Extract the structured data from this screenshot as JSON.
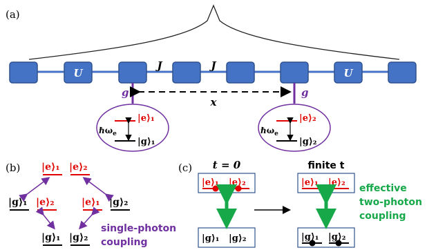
{
  "panel_a": {
    "label": "(a)",
    "u_label": "U",
    "j_label": "J",
    "g_label": "g",
    "x_label": "x",
    "atom1": {
      "e": "|e⟩₁",
      "g": "|g⟩₁",
      "omega": "ℏω"
    },
    "atom2": {
      "e": "|e⟩₂",
      "g": "|g⟩₂",
      "omega": "ℏω"
    },
    "omega_sub": "e"
  },
  "panel_b": {
    "label": "(b)",
    "top": [
      "|e⟩₁",
      "|e⟩₂"
    ],
    "mid_left": [
      "|g⟩₁",
      "|e⟩₂"
    ],
    "mid_right": [
      "|e⟩₁",
      "|g⟩₂"
    ],
    "bottom": [
      "|g⟩₁",
      "|g⟩₂"
    ],
    "caption_line1": "single-photon",
    "caption_line2": "coupling"
  },
  "panel_c": {
    "label": "(c)",
    "t0": "t = 0",
    "tfinite": "finite t",
    "top_left": [
      "|e⟩₁",
      "|e⟩₂"
    ],
    "top_right": [
      "|e⟩₁",
      "|e⟩₂"
    ],
    "bottom_left": [
      "|g⟩₁",
      "|g⟩₂"
    ],
    "bottom_right": [
      "|g⟩₁",
      "|g⟩₂"
    ],
    "caption_line1": "effective",
    "caption_line2": "two-photon",
    "caption_line3": "coupling"
  },
  "colors": {
    "box_fill": "#4472C4",
    "box_stroke": "#2F528F",
    "purple": "#7030A0",
    "red": "#E00000",
    "green": "#17A84A",
    "line_blue": "#4472C4"
  }
}
